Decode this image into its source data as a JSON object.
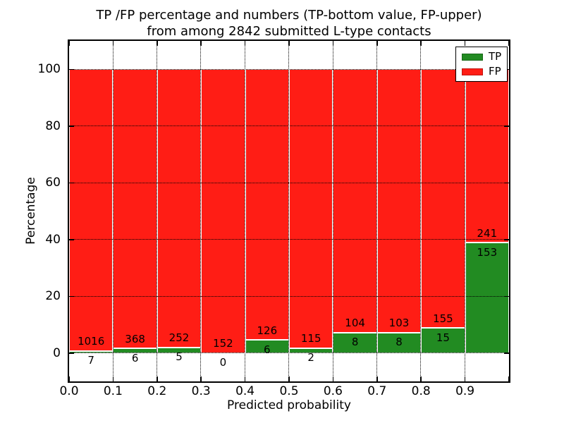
{
  "title": {
    "line1": "TP /FP percentage and numbers (TP-bottom value, FP-upper)",
    "line2": "from among 2842 submitted L-type contacts"
  },
  "axes": {
    "xlabel": "Predicted probability",
    "ylabel": "Percentage"
  },
  "legend": {
    "items": [
      {
        "label": "TP",
        "color": "#228B22"
      },
      {
        "label": "FP",
        "color": "#FF1D15"
      }
    ]
  },
  "chart_data": {
    "type": "bar",
    "stacked": true,
    "normalized": "each bin stacks to 100 percent",
    "total_contacts": 2842,
    "title": "TP /FP percentage and numbers (TP-bottom value, FP-upper) from among 2842 submitted L-type contacts",
    "xlabel": "Predicted probability",
    "ylabel": "Percentage",
    "bin_starts": [
      0.0,
      0.1,
      0.2,
      0.3,
      0.4,
      0.5,
      0.6,
      0.7,
      0.8,
      0.9
    ],
    "bin_width": 0.1,
    "series": [
      {
        "name": "TP",
        "color": "#228B22",
        "counts": [
          7,
          6,
          5,
          0,
          6,
          2,
          8,
          8,
          15,
          153
        ]
      },
      {
        "name": "FP",
        "color": "#FF1D15",
        "counts": [
          1016,
          368,
          252,
          152,
          126,
          115,
          104,
          103,
          155,
          241
        ]
      }
    ],
    "tp_percent_of_bin": [
      0.68,
      1.6,
      1.95,
      0.0,
      4.55,
      1.71,
      7.14,
      7.21,
      8.82,
      38.83
    ],
    "x_tick_labels": [
      "0.0",
      "0.1",
      "0.2",
      "0.3",
      "0.4",
      "0.5",
      "0.6",
      "0.7",
      "0.8",
      "0.9"
    ],
    "y_tick_values": [
      0,
      20,
      40,
      60,
      80,
      100
    ],
    "y_tick_labels": [
      "0",
      "20",
      "40",
      "60",
      "80",
      "100"
    ],
    "xlim": [
      0.0,
      1.0
    ],
    "ylim": [
      -10,
      110
    ],
    "grid": {
      "style": "dotted",
      "color": "#000000"
    },
    "legend_position": "upper right"
  }
}
